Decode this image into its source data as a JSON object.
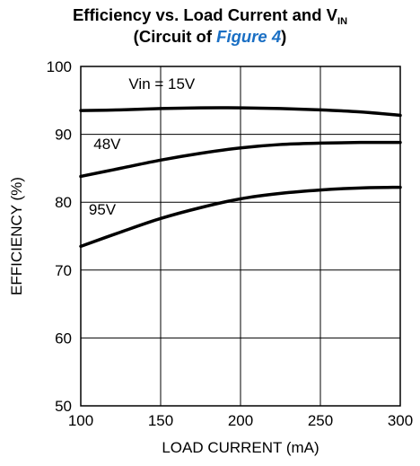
{
  "chart_data": {
    "type": "line",
    "title_line1_prefix": "Efficiency vs. Load Current and V",
    "title_line1_sub": "IN",
    "title_line2_prefix": "(Circuit of ",
    "title_line2_link": "Figure 4",
    "title_line2_suffix": ")",
    "xlabel": "LOAD CURRENT (mA)",
    "ylabel": "EFFICIENCY (%)",
    "xlim": [
      100,
      300
    ],
    "ylim": [
      50,
      100
    ],
    "x_ticks": [
      100,
      150,
      200,
      250,
      300
    ],
    "y_ticks": [
      50,
      60,
      70,
      80,
      90,
      100
    ],
    "grid": true,
    "line_color": "#000000",
    "link_color": "#1a6fc4",
    "series": [
      {
        "name": "Vin = 15V",
        "label_x": 130,
        "label_y": 96.7,
        "x": [
          100,
          125,
          150,
          175,
          200,
          225,
          250,
          275,
          300
        ],
        "y": [
          93.5,
          93.6,
          93.8,
          93.9,
          93.9,
          93.8,
          93.6,
          93.3,
          92.8
        ]
      },
      {
        "name": "48V",
        "label_x": 108,
        "label_y": 87.8,
        "x": [
          100,
          125,
          150,
          175,
          200,
          225,
          250,
          275,
          300
        ],
        "y": [
          83.8,
          85.0,
          86.2,
          87.2,
          88.0,
          88.5,
          88.7,
          88.8,
          88.8
        ]
      },
      {
        "name": "95V",
        "label_x": 105,
        "label_y": 78.2,
        "x": [
          100,
          125,
          150,
          175,
          200,
          225,
          250,
          275,
          300
        ],
        "y": [
          73.5,
          75.6,
          77.6,
          79.2,
          80.5,
          81.3,
          81.8,
          82.1,
          82.2
        ]
      }
    ]
  }
}
